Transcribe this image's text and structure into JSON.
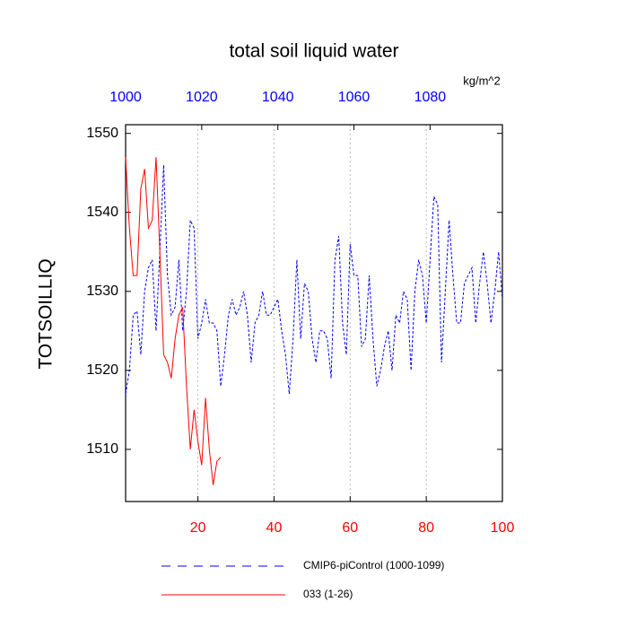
{
  "chart_data": {
    "type": "line",
    "title": "total soil liquid water",
    "ylabel": "TOTSOILLIQ",
    "units": "kg/m^2",
    "xlim": [
      1,
      100
    ],
    "xticks": [
      20,
      40,
      60,
      80,
      100
    ],
    "xtick_color": "#ff0000",
    "x2lim": [
      1000,
      1099
    ],
    "x2ticks": [
      1000,
      1020,
      1040,
      1060,
      1080
    ],
    "x2tick_color": "#0000ff",
    "ylim": [
      1503.4,
      1551.1
    ],
    "yticks": [
      1510,
      1520,
      1530,
      1540,
      1550
    ],
    "grid": true,
    "series": [
      {
        "name": "CMIP6-piControl (1000-1099)",
        "color": "#0000ff",
        "dashed": true,
        "axis": "x2",
        "x": [
          1000,
          1001,
          1002,
          1003,
          1004,
          1005,
          1006,
          1007,
          1008,
          1009,
          1010,
          1011,
          1012,
          1013,
          1014,
          1015,
          1016,
          1017,
          1018,
          1019,
          1020,
          1021,
          1022,
          1023,
          1024,
          1025,
          1026,
          1027,
          1028,
          1029,
          1030,
          1031,
          1032,
          1033,
          1034,
          1035,
          1036,
          1037,
          1038,
          1039,
          1040,
          1041,
          1042,
          1043,
          1044,
          1045,
          1046,
          1047,
          1048,
          1049,
          1050,
          1051,
          1052,
          1053,
          1054,
          1055,
          1056,
          1057,
          1058,
          1059,
          1060,
          1061,
          1062,
          1063,
          1064,
          1065,
          1066,
          1067,
          1068,
          1069,
          1070,
          1071,
          1072,
          1073,
          1074,
          1075,
          1076,
          1077,
          1078,
          1079,
          1080,
          1081,
          1082,
          1083,
          1084,
          1085,
          1086,
          1087,
          1088,
          1089,
          1090,
          1091,
          1092,
          1093,
          1094,
          1095,
          1096,
          1097,
          1098,
          1099
        ],
        "values": [
          1517,
          1520,
          1527,
          1527.5,
          1522,
          1530,
          1533,
          1534,
          1525,
          1535,
          1546,
          1532,
          1527,
          1528,
          1534,
          1525,
          1530,
          1539,
          1538,
          1524,
          1526,
          1529,
          1526,
          1526,
          1525,
          1518,
          1522,
          1527,
          1529,
          1527,
          1528,
          1530,
          1527,
          1521,
          1526,
          1527,
          1530,
          1527,
          1527,
          1528,
          1529,
          1525,
          1522,
          1517,
          1524,
          1534,
          1524,
          1531,
          1530,
          1524,
          1521,
          1525,
          1525,
          1524,
          1519,
          1534,
          1537,
          1526,
          1522,
          1536,
          1532,
          1532,
          1523,
          1524,
          1532,
          1524,
          1518,
          1520,
          1523,
          1525,
          1520,
          1527,
          1526,
          1530,
          1529,
          1520,
          1530,
          1534,
          1532,
          1526,
          1534,
          1542,
          1541,
          1521,
          1530,
          1539,
          1532,
          1526,
          1526,
          1531,
          1532,
          1533,
          1526,
          1531,
          1535,
          1531,
          1526,
          1530,
          1535,
          1529
        ]
      },
      {
        "name": "033 (1-26)",
        "color": "#ff0000",
        "dashed": false,
        "axis": "x",
        "x": [
          1,
          2,
          3,
          4,
          5,
          6,
          7,
          8,
          9,
          10,
          11,
          12,
          13,
          14,
          15,
          16,
          17,
          18,
          19,
          20,
          21,
          22,
          23,
          24,
          25,
          26
        ],
        "values": [
          1547,
          1538,
          1532,
          1532,
          1543,
          1545.5,
          1538,
          1539,
          1547,
          1535,
          1522,
          1521,
          1519,
          1524,
          1527,
          1528,
          1518,
          1510,
          1515,
          1511,
          1508,
          1516.5,
          1510,
          1505.5,
          1508.5,
          1509
        ]
      }
    ]
  }
}
